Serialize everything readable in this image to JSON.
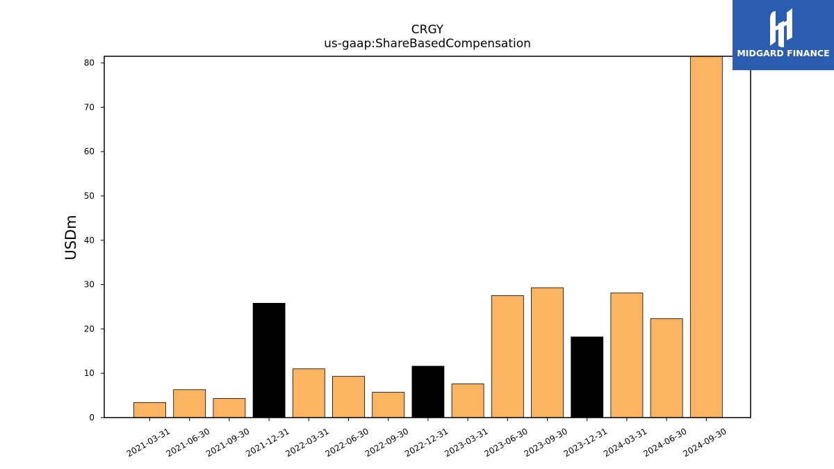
{
  "logo": {
    "text": "MIDGARD FINANCE",
    "icon": "midgard-logo-icon",
    "background": "#2a5db0"
  },
  "chart_data": {
    "type": "bar",
    "title": "CRGY",
    "subtitle": "us-gaap:ShareBasedCompensation",
    "xlabel": "",
    "ylabel": "USDm",
    "ylim": [
      0,
      81.5
    ],
    "yticks": [
      0,
      10,
      20,
      30,
      40,
      50,
      60,
      70,
      80
    ],
    "grid": false,
    "categories": [
      "2021-03-31",
      "2021-06-30",
      "2021-09-30",
      "2021-12-31",
      "2022-03-31",
      "2022-06-30",
      "2022-09-30",
      "2022-12-31",
      "2023-03-31",
      "2023-06-30",
      "2023-09-30",
      "2023-12-31",
      "2024-03-31",
      "2024-06-30",
      "2024-09-30"
    ],
    "values": [
      3.4,
      6.3,
      4.3,
      25.8,
      11.0,
      9.3,
      5.7,
      11.6,
      7.6,
      27.5,
      29.3,
      18.2,
      28.1,
      22.3,
      81.5
    ],
    "colors": [
      "#fdb462",
      "#fdb462",
      "#fdb462",
      "#000000",
      "#fdb462",
      "#fdb462",
      "#fdb462",
      "#000000",
      "#fdb462",
      "#fdb462",
      "#fdb462",
      "#000000",
      "#fdb462",
      "#fdb462",
      "#fdb462"
    ]
  }
}
